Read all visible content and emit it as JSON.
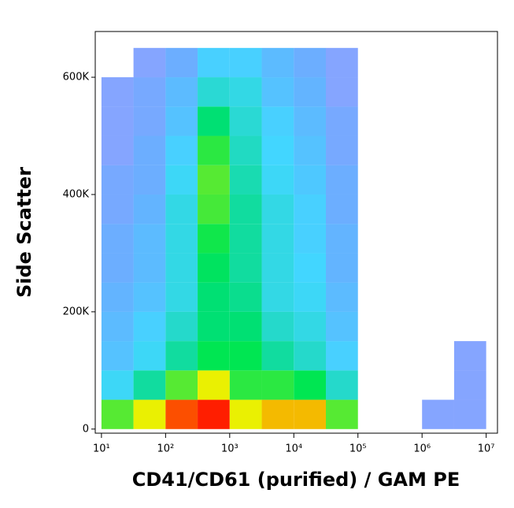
{
  "chart_data": {
    "type": "density",
    "x_label": "CD41/CD61 (purified) / GAM PE",
    "y_label": "Side Scatter",
    "log_x": true,
    "xlim": [
      8,
      15000000
    ],
    "ylim": [
      -7000,
      678000
    ],
    "xticks": [
      {
        "value": 10,
        "label": "10¹"
      },
      {
        "value": 100,
        "label": "10²"
      },
      {
        "value": 1000,
        "label": "10³"
      },
      {
        "value": 10000,
        "label": "10⁴"
      },
      {
        "value": 100000,
        "label": "10⁵"
      },
      {
        "value": 1000000,
        "label": "10⁶"
      },
      {
        "value": 10000000,
        "label": "10⁷"
      }
    ],
    "yticks": [
      0,
      {
        "value": 200000,
        "label": "200K"
      },
      {
        "value": 400000,
        "label": "400K"
      },
      {
        "value": 600000,
        "label": "600K"
      }
    ],
    "x_edges": [
      10,
      31.6,
      100,
      316,
      1000,
      3162,
      10000,
      31623,
      100000,
      316228,
      1000000,
      3162278,
      10000000
    ],
    "y_edges": [
      0,
      50000,
      100000,
      150000,
      200000,
      250000,
      300000,
      350000,
      400000,
      450000,
      500000,
      550000,
      600000,
      650000
    ],
    "counts": [
      [
        40,
        60,
        90,
        100,
        60,
        70,
        70,
        40,
        0,
        0,
        1,
        1
      ],
      [
        10,
        20,
        40,
        60,
        35,
        35,
        30,
        15,
        0,
        0,
        0,
        1
      ],
      [
        6,
        10,
        20,
        30,
        30,
        20,
        15,
        8,
        0,
        0,
        0,
        1
      ],
      [
        5,
        8,
        15,
        25,
        25,
        15,
        12,
        6,
        0,
        0,
        0,
        0
      ],
      [
        4,
        6,
        12,
        25,
        22,
        12,
        10,
        5,
        0,
        0,
        0,
        0
      ],
      [
        3,
        5,
        12,
        28,
        20,
        12,
        9,
        4,
        0,
        0,
        0,
        0
      ],
      [
        3,
        5,
        12,
        32,
        20,
        12,
        8,
        4,
        0,
        0,
        0,
        0
      ],
      [
        2,
        4,
        12,
        38,
        20,
        12,
        8,
        3,
        0,
        0,
        0,
        0
      ],
      [
        2,
        3,
        10,
        40,
        18,
        10,
        7,
        3,
        0,
        0,
        0,
        0
      ],
      [
        1,
        3,
        8,
        35,
        16,
        9,
        6,
        2,
        0,
        0,
        0,
        0
      ],
      [
        1,
        2,
        6,
        25,
        14,
        8,
        5,
        2,
        0,
        0,
        0,
        0
      ],
      [
        1,
        2,
        5,
        14,
        12,
        6,
        4,
        1,
        0,
        0,
        0,
        0
      ],
      [
        0,
        1,
        3,
        8,
        8,
        5,
        3,
        1,
        0,
        0,
        0,
        0
      ]
    ]
  }
}
